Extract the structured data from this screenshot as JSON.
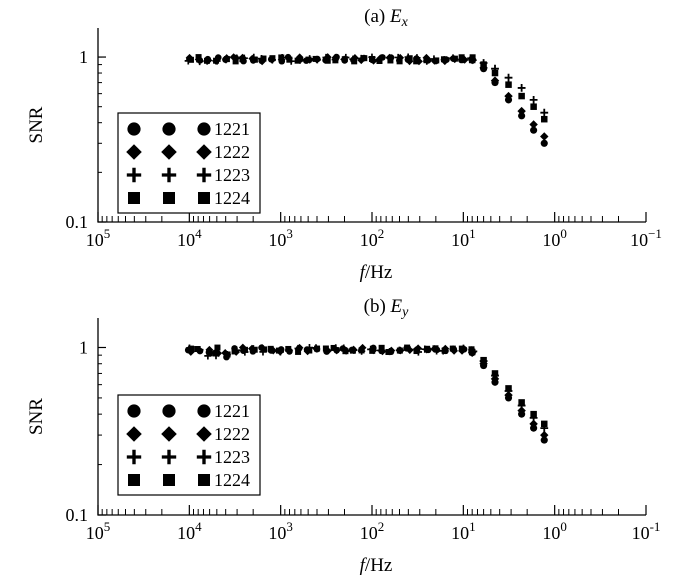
{
  "chart_data": [
    {
      "type": "scatter",
      "title_prefix": "(a) ",
      "title_var": "E",
      "title_sub": "x",
      "xlabel_var": "f",
      "xlabel_unit": "/Hz",
      "ylabel": "SNR",
      "xscale": "log",
      "yscale": "log",
      "x_reversed": true,
      "xlim": [
        100000,
        0.1
      ],
      "ylim": [
        0.1,
        1.5
      ],
      "x_ticks": [
        {
          "base": "10",
          "exp": "5"
        },
        {
          "base": "10",
          "exp": "4"
        },
        {
          "base": "10",
          "exp": "3"
        },
        {
          "base": "10",
          "exp": "2"
        },
        {
          "base": "10",
          "exp": "1"
        },
        {
          "base": "10",
          "exp": "0"
        },
        {
          "base": "10",
          "exp": "−1"
        }
      ],
      "y_ticks": [
        "0.1",
        "1"
      ],
      "legend_position": "lower-left",
      "series": [
        {
          "name": "1221",
          "marker": "circle"
        },
        {
          "name": "1222",
          "marker": "diamond"
        },
        {
          "name": "1223",
          "marker": "plus"
        },
        {
          "name": "1224",
          "marker": "square"
        }
      ],
      "flat_x_range": [
        10000,
        8
      ],
      "flat_level": 0.97,
      "tail": [
        {
          "x": [
            8,
            6,
            4.5,
            3.2,
            2.3,
            1.7,
            1.3
          ],
          "y": {
            "1221": [
              0.96,
              0.85,
              0.7,
              0.55,
              0.44,
              0.36,
              0.3
            ],
            "1222": [
              0.96,
              0.86,
              0.72,
              0.58,
              0.47,
              0.39,
              0.33
            ],
            "1223": [
              0.97,
              0.92,
              0.85,
              0.75,
              0.65,
              0.55,
              0.46
            ],
            "1224": [
              0.96,
              0.9,
              0.8,
              0.68,
              0.58,
              0.5,
              0.42
            ]
          }
        }
      ]
    },
    {
      "type": "scatter",
      "title_prefix": "(b) ",
      "title_var": "E",
      "title_sub": "y",
      "xlabel_var": "f",
      "xlabel_unit": "/Hz",
      "ylabel": "SNR",
      "xscale": "log",
      "yscale": "log",
      "x_reversed": true,
      "xlim": [
        100000,
        0.1
      ],
      "ylim": [
        0.1,
        1.5
      ],
      "x_ticks": [
        {
          "base": "10",
          "exp": "5"
        },
        {
          "base": "10",
          "exp": "4"
        },
        {
          "base": "10",
          "exp": "3"
        },
        {
          "base": "10",
          "exp": "2"
        },
        {
          "base": "10",
          "exp": "1"
        },
        {
          "base": "10",
          "exp": "0"
        },
        {
          "base": "10",
          "exp": "-1"
        }
      ],
      "y_ticks": [
        "0.1",
        "1"
      ],
      "legend_position": "lower-left",
      "series": [
        {
          "name": "1221",
          "marker": "circle"
        },
        {
          "name": "1222",
          "marker": "diamond"
        },
        {
          "name": "1223",
          "marker": "plus"
        },
        {
          "name": "1224",
          "marker": "square"
        }
      ],
      "flat_x_range": [
        10000,
        8
      ],
      "flat_level": 0.97,
      "tail": [
        {
          "x": [
            8,
            6,
            4.5,
            3.2,
            2.3,
            1.7,
            1.3
          ],
          "y": {
            "1221": [
              0.93,
              0.78,
              0.62,
              0.5,
              0.4,
              0.33,
              0.28
            ],
            "1222": [
              0.93,
              0.8,
              0.65,
              0.52,
              0.42,
              0.35,
              0.3
            ],
            "1223": [
              0.94,
              0.83,
              0.68,
              0.55,
              0.45,
              0.38,
              0.33
            ],
            "1224": [
              0.94,
              0.84,
              0.7,
              0.57,
              0.47,
              0.4,
              0.35
            ]
          }
        }
      ]
    }
  ]
}
